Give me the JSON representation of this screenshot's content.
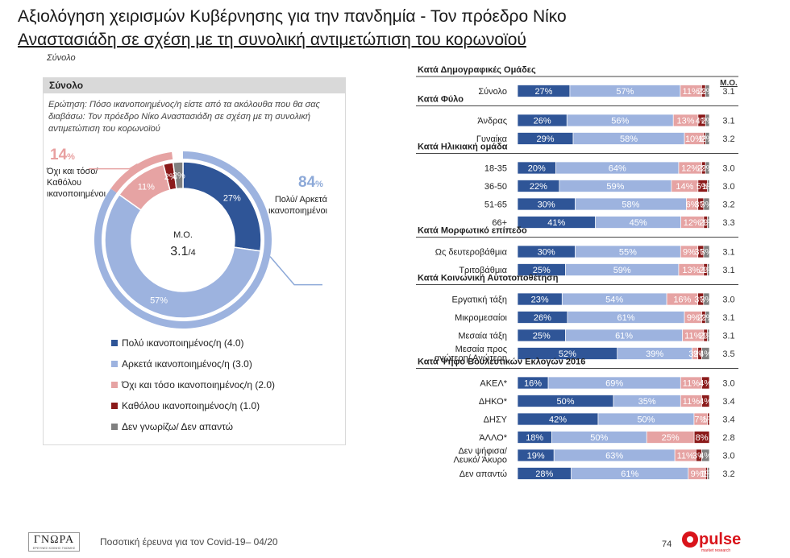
{
  "title": {
    "line1": "Αξιολόγηση χειρισμών Κυβέρνησης για την πανδημία - Τον πρόεδρο Νίκο",
    "line2": "Αναστασιάδη σε σχέση με τη συνολική αντιμετώπιση του κορωνοϊού"
  },
  "subtitle": "Σύνολο",
  "left_panel": {
    "header": "Σύνολο",
    "question": "Ερώτηση: Πόσο ικανοποιημένος/η είστε από τα ακόλουθα που θα σας διαβάσω: Τον πρόεδρο Νίκο Αναστασιάδη σε σχέση με τη συνολική αντιμετώπιση του κορωνοϊού",
    "negative_total": "14",
    "negative_label": "Όχι και τόσο/ Καθόλου ικανοποιημένοι",
    "positive_total": "84",
    "positive_label": "Πολύ/ Αρκετά ικανοποιημένοι",
    "pct_sign": "%",
    "center_label": "Μ.Ο.",
    "center_value": "3.1",
    "center_suffix": "/4",
    "legend": [
      {
        "label": "Πολύ ικανοποιημένος/η (4.0)",
        "color": "#2f5597"
      },
      {
        "label": "Αρκετά ικανοποιημένος/η (3.0)",
        "color": "#9db3df"
      },
      {
        "label": "Όχι και τόσο ικανοποιημένος/η (2.0)",
        "color": "#e6a3a3"
      },
      {
        "label": "Καθόλου ικανοποιημένος/η (1.0)",
        "color": "#8b1a1a"
      },
      {
        "label": "Δεν γνωρίζω/ Δεν απαντώ",
        "color": "#808080"
      }
    ]
  },
  "chart_data": [
    {
      "type": "pie",
      "categories": [
        "Πολύ ικανοποιημένος/η",
        "Αρκετά ικανοποιημένος/η",
        "Όχι και τόσο ικανοποιημένος/η",
        "Καθόλου ικανοποιημένος/η",
        "Δεν γνωρίζω/ Δεν απαντώ"
      ],
      "values": [
        27,
        57,
        11,
        2,
        2
      ],
      "labels": [
        "27%",
        "57%",
        "11%",
        "2%",
        "2%"
      ],
      "colors": [
        "#2f5597",
        "#9db3df",
        "#e6a3a3",
        "#8b1a1a",
        "#808080"
      ]
    },
    {
      "type": "bar",
      "mean_header": "Μ.Ο.",
      "colors": [
        "#2f5597",
        "#9db3df",
        "#e6a3a3",
        "#8b1a1a",
        "#808080"
      ],
      "groups": [
        {
          "title": "Κατά Δημογραφικές Ομάδες",
          "rows": [
            {
              "label": "Σύνολο",
              "values": [
                27,
                57,
                11,
                2,
                2
              ],
              "mean": "3.1"
            }
          ]
        },
        {
          "title": "Κατά Φύλο",
          "rows": [
            {
              "label": "Άνδρας",
              "values": [
                26,
                56,
                13,
                4,
                2
              ],
              "mean": "3.1"
            },
            {
              "label": "Γυναίκα",
              "values": [
                29,
                58,
                10,
                1,
                2
              ],
              "mean": "3.2"
            }
          ]
        },
        {
          "title": "Κατά Ηλικιακή ομάδα",
          "rows": [
            {
              "label": "18-35",
              "values": [
                20,
                64,
                12,
                2,
                2
              ],
              "mean": "3.0"
            },
            {
              "label": "36-50",
              "values": [
                22,
                59,
                14,
                5,
                1
              ],
              "mean": "3.0"
            },
            {
              "label": "51-65",
              "values": [
                30,
                58,
                6,
                3,
                3
              ],
              "mean": "3.2"
            },
            {
              "label": "66+",
              "values": [
                41,
                45,
                12,
                2,
                1
              ],
              "mean": "3.3"
            }
          ]
        },
        {
          "title": "Κατά Μορφωτικό επίπεδο",
          "rows": [
            {
              "label": "Ως δευτεροβάθμια",
              "values": [
                30,
                55,
                9,
                3,
                3
              ],
              "mean": "3.1"
            },
            {
              "label": "Τριτοβάθμια",
              "values": [
                25,
                59,
                13,
                2,
                1
              ],
              "mean": "3.1"
            }
          ]
        },
        {
          "title": "Κατά Κοινωνική Αυτοτοποθέτηση",
          "rows": [
            {
              "label": "Εργατική τάξη",
              "values": [
                23,
                54,
                16,
                3,
                3
              ],
              "mean": "3.0"
            },
            {
              "label": "Μικρομεσαίοι",
              "values": [
                26,
                61,
                9,
                2,
                2
              ],
              "mean": "3.1"
            },
            {
              "label": "Μεσαία τάξη",
              "values": [
                25,
                61,
                11,
                2,
                1
              ],
              "mean": "3.1"
            },
            {
              "label": "Μεσαία προς ανώτερη/ Ανώτερη",
              "values": [
                52,
                39,
                3,
                2,
                4
              ],
              "mean": "3.5"
            }
          ]
        },
        {
          "title": "Κατά Ψήφο Βουλευτικών Εκλογών 2016",
          "rows": [
            {
              "label": "ΑΚΕΛ*",
              "values": [
                16,
                69,
                11,
                4,
                0
              ],
              "mean": "3.0"
            },
            {
              "label": "ΔΗΚΟ*",
              "values": [
                50,
                35,
                11,
                4,
                0
              ],
              "mean": "3.4"
            },
            {
              "label": "ΔΗΣΥ",
              "values": [
                42,
                50,
                7,
                1,
                0
              ],
              "mean": "3.4"
            },
            {
              "label": "ΆΛΛΟ*",
              "values": [
                18,
                50,
                25,
                8,
                0
              ],
              "mean": "2.8"
            },
            {
              "label": "Δεν ψήφισα/ Λευκό/ Άκυρο",
              "values": [
                19,
                63,
                11,
                3,
                4
              ],
              "mean": "3.0"
            },
            {
              "label": "Δεν απαντώ",
              "values": [
                28,
                61,
                9,
                1,
                1
              ],
              "mean": "3.2"
            }
          ]
        }
      ]
    }
  ],
  "footer": {
    "logo_main": "ΓΝΩΡΑ",
    "logo_sub": "ΕΡΕΥΝΕΣ ΚΟΙΝΗΣ ΓΝΩΜΗΣ",
    "text": "Ποσοτική έρευνα για τον Covid-19– 04/20",
    "page_number": "74",
    "brand": "pulse",
    "brand_sub": "market research"
  }
}
